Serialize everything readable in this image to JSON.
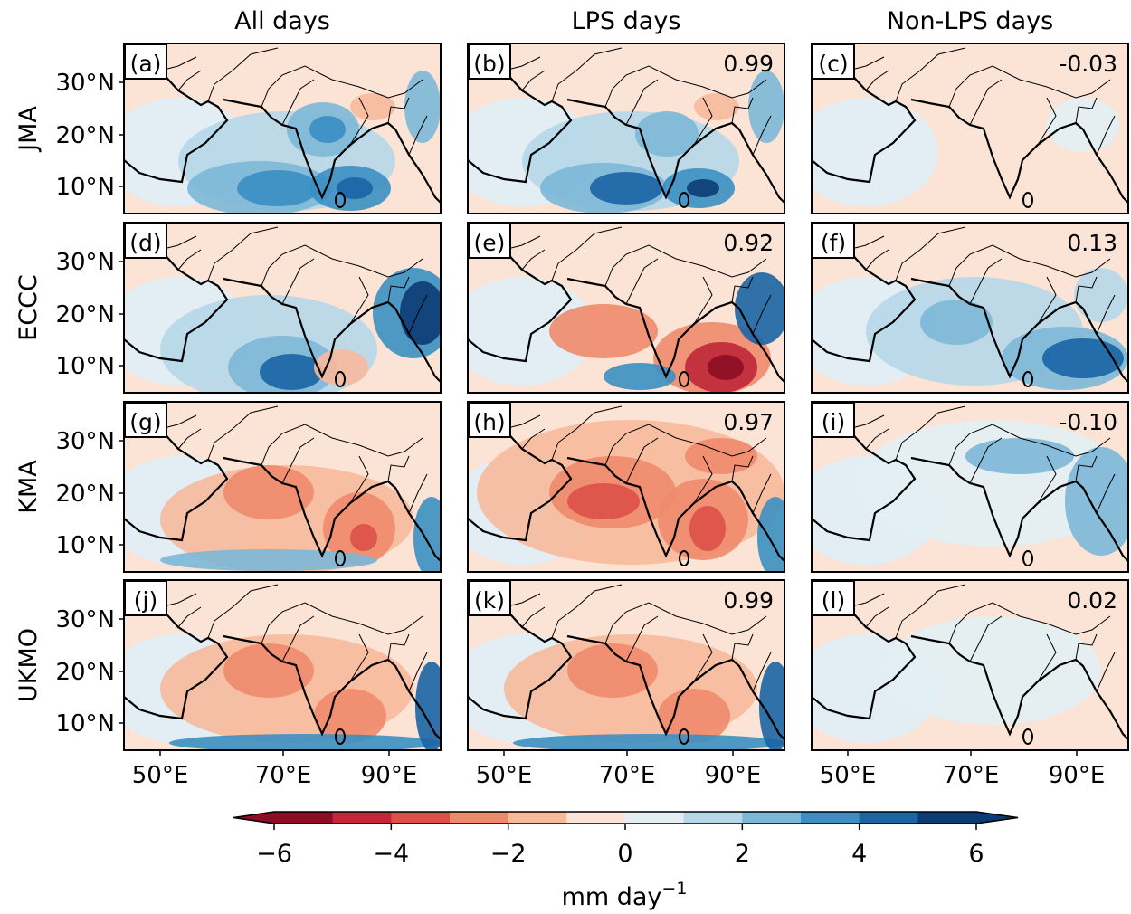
{
  "columns": [
    "All days",
    "LPS days",
    "Non-LPS days"
  ],
  "rows": [
    "JMA",
    "ECCC",
    "KMA",
    "UKMO"
  ],
  "panels": [
    [
      {
        "label": "(a)"
      },
      {
        "label": "(b)",
        "r": "0.99"
      },
      {
        "label": "(c)",
        "r": "-0.03"
      }
    ],
    [
      {
        "label": "(d)"
      },
      {
        "label": "(e)",
        "r": "0.92"
      },
      {
        "label": "(f)",
        "r": "0.13"
      }
    ],
    [
      {
        "label": "(g)"
      },
      {
        "label": "(h)",
        "r": "0.97"
      },
      {
        "label": "(i)",
        "r": "-0.10"
      }
    ],
    [
      {
        "label": "(j)"
      },
      {
        "label": "(k)",
        "r": "0.99"
      },
      {
        "label": "(l)",
        "r": "0.02"
      }
    ]
  ],
  "lat_ticks": [
    "30°N",
    "20°N",
    "10°N"
  ],
  "lon_ticks": [
    "50°E",
    "70°E",
    "90°E"
  ],
  "colorbar": {
    "range": [
      -6,
      6
    ],
    "ticks": [
      {
        "value": -6,
        "label": "−6"
      },
      {
        "value": -4,
        "label": "−4"
      },
      {
        "value": -2,
        "label": "−2"
      },
      0,
      2,
      4,
      6
    ],
    "colors": [
      "#8c0d25",
      "#c0283a",
      "#db5048",
      "#ee8a6c",
      "#f7b99c",
      "#fbe3d6",
      "#e2eef4",
      "#b6d7e9",
      "#7cb7d7",
      "#3b8fc2",
      "#1b64a5",
      "#0b3c73"
    ],
    "label": "mm day",
    "label_exponent": "−1"
  }
}
